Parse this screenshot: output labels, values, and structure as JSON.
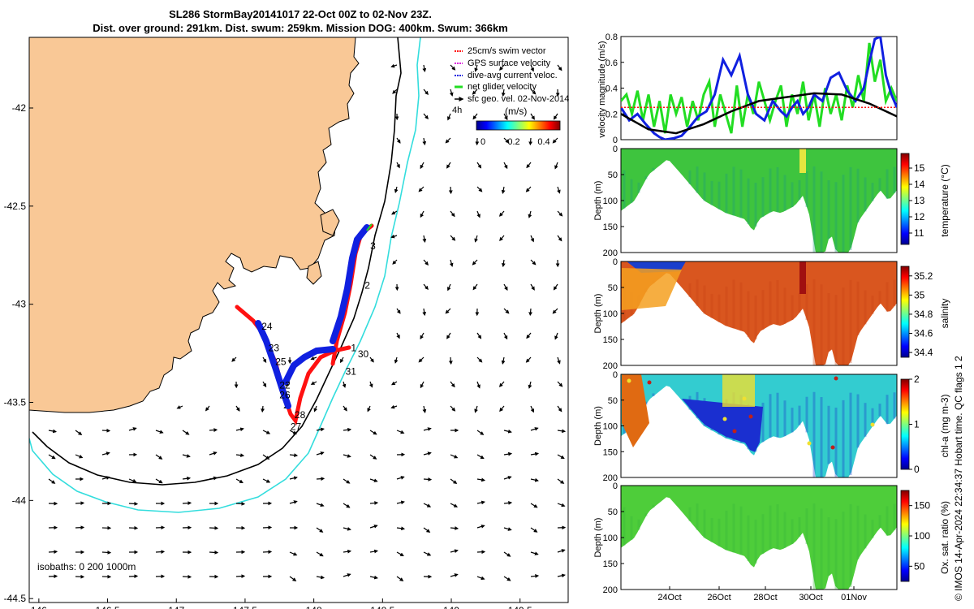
{
  "title_line1": "SL286 StormBay20141017 22-Oct 00Z to 02-Nov 23Z.",
  "title_line2": "Dist. over ground: 291km. Dist. swum: 259km. Mission DOG: 400km. Swum: 366km",
  "credit": "© IMOS 14-Apr-2024 22:34:37 Hobart time. QC flags 1  2",
  "colors": {
    "land": "#f9c896",
    "coast_iso": "#000000",
    "iso1000": "#33dddd",
    "swim": "#ff1111",
    "dac": "#1020e0",
    "net": "#22dd22",
    "sfc": "#000000"
  },
  "chart_data": [
    {
      "type": "map",
      "xlabel": "",
      "ylabel": "",
      "xlim": [
        145.93,
        149.85
      ],
      "ylim": [
        -44.52,
        -41.64
      ],
      "x_ticks": [
        "146",
        "146.5",
        "147",
        "147.5",
        "148",
        "148.5",
        "149",
        "149.5"
      ],
      "y_ticks": [
        "-42",
        "-42.5",
        "-43",
        "-43.5",
        "-44",
        "-44.5"
      ],
      "legend": [
        "25cm/s swim vector",
        "GPS surface velocity",
        "dive-avg current veloc.",
        "net glider velocity",
        "sfc geo. vel. 02-Nov-2014"
      ],
      "legend_extra": "4h",
      "colorbar_title": "(m/s)",
      "colorbar_ticks": [
        "0",
        "0.2",
        "0.4"
      ],
      "isobaths_label": "isobaths: 0   200  1000m",
      "track_labels": [
        {
          "t": "3",
          "lon": 148.41,
          "lat": -42.72
        },
        {
          "t": "2",
          "lon": 148.37,
          "lat": -42.92
        },
        {
          "t": "1",
          "lon": 148.27,
          "lat": -43.24
        },
        {
          "t": "30",
          "lon": 148.32,
          "lat": -43.27
        },
        {
          "t": "31",
          "lon": 148.23,
          "lat": -43.36
        },
        {
          "t": "24",
          "lon": 147.62,
          "lat": -43.13
        },
        {
          "t": "23",
          "lon": 147.67,
          "lat": -43.24
        },
        {
          "t": "25",
          "lon": 147.72,
          "lat": -43.31
        },
        {
          "t": "22",
          "lon": 147.75,
          "lat": -43.43
        },
        {
          "t": "26",
          "lon": 147.75,
          "lat": -43.48
        },
        {
          "t": "28",
          "lon": 147.86,
          "lat": -43.58
        },
        {
          "t": "27",
          "lon": 147.83,
          "lat": -43.64
        }
      ]
    },
    {
      "type": "line",
      "ylabel": "velocity magnitude (m/s)",
      "xlim": [
        0,
        100
      ],
      "ylim": [
        0,
        0.8
      ],
      "y_ticks": [
        "0",
        "0.2",
        "0.4",
        "0.6",
        "0.8"
      ],
      "series": [
        {
          "name": "dive-avg current veloc.",
          "color": "#1020e0",
          "x": [
            0,
            3,
            6,
            9,
            12,
            14,
            16,
            19,
            22,
            25,
            28,
            31,
            34,
            37,
            40,
            43,
            46,
            49,
            52,
            55,
            58,
            60,
            62,
            64,
            66,
            68,
            70,
            73,
            76,
            79,
            82,
            85,
            88,
            90,
            92,
            94,
            96,
            98,
            100
          ],
          "y": [
            0.25,
            0.15,
            0.2,
            0.12,
            0.05,
            0.02,
            0,
            0.01,
            0.03,
            0.1,
            0.18,
            0.22,
            0.35,
            0.62,
            0.5,
            0.65,
            0.35,
            0.2,
            0.15,
            0.3,
            0.22,
            0.18,
            0.25,
            0.3,
            0.2,
            0.25,
            0.35,
            0.3,
            0.48,
            0.52,
            0.38,
            0.3,
            0.4,
            0.6,
            0.78,
            0.8,
            0.5,
            0.35,
            0.25
          ]
        },
        {
          "name": "net glider velocity",
          "color": "#22dd22",
          "x": [
            0,
            2,
            4,
            6,
            8,
            10,
            12,
            14,
            16,
            18,
            20,
            22,
            24,
            26,
            28,
            30,
            32,
            34,
            36,
            38,
            40,
            42,
            44,
            46,
            48,
            50,
            52,
            54,
            56,
            58,
            60,
            62,
            64,
            66,
            68,
            70,
            72,
            74,
            76,
            78,
            80,
            82,
            84,
            86,
            88,
            90,
            92,
            94,
            96,
            98,
            100
          ],
          "y": [
            0.3,
            0.35,
            0.2,
            0.38,
            0.15,
            0.35,
            0.1,
            0.3,
            0.05,
            0.35,
            0.2,
            0.33,
            0.1,
            0.3,
            0.15,
            0.35,
            0.45,
            0.1,
            0.35,
            0.2,
            0.05,
            0.42,
            0.1,
            0.35,
            0.2,
            0.45,
            0.3,
            0.15,
            0.3,
            0.42,
            0.1,
            0.35,
            0.2,
            0.45,
            0.15,
            0.35,
            0.1,
            0.4,
            0.2,
            0.35,
            0.15,
            0.42,
            0.25,
            0.5,
            0.3,
            0.75,
            0.45,
            0.62,
            0.3,
            0.4,
            0.3
          ]
        },
        {
          "name": "sfc geo. vel.",
          "color": "#000000",
          "x": [
            0,
            10,
            20,
            30,
            40,
            50,
            60,
            70,
            80,
            90,
            100
          ],
          "y": [
            0.2,
            0.08,
            0.05,
            0.12,
            0.22,
            0.3,
            0.33,
            0.36,
            0.35,
            0.28,
            0.18
          ]
        },
        {
          "name": "25cm/s reference",
          "color": "#ff1111",
          "x": [
            0,
            100
          ],
          "y": [
            0.25,
            0.25
          ]
        }
      ]
    },
    {
      "type": "heatmap",
      "variable": "temperature",
      "ylabel": "Depth (m)",
      "clabel": "temperature (°C)",
      "ylim": [
        0,
        200
      ],
      "y_ticks": [
        "0",
        "50",
        "100",
        "150",
        "200"
      ],
      "c_ticks": [
        "11",
        "12",
        "13",
        "14",
        "15"
      ],
      "clim": [
        10.3,
        15.9
      ]
    },
    {
      "type": "heatmap",
      "variable": "salinity",
      "ylabel": "Depth (m)",
      "clabel": "salinity",
      "ylim": [
        0,
        200
      ],
      "y_ticks": [
        "0",
        "50",
        "100",
        "150",
        "200"
      ],
      "c_ticks": [
        "34.4",
        "34.6",
        "34.8",
        "35",
        "35.2"
      ],
      "clim": [
        34.35,
        35.3
      ]
    },
    {
      "type": "heatmap",
      "variable": "chl-a",
      "ylabel": "Depth (m)",
      "clabel": "chl-a (mg m-3)",
      "ylim": [
        0,
        200
      ],
      "y_ticks": [
        "0",
        "50",
        "100",
        "150",
        "200"
      ],
      "c_ticks": [
        "0",
        "1",
        "2"
      ],
      "clim": [
        0,
        2
      ]
    },
    {
      "type": "heatmap",
      "variable": "oxygen",
      "ylabel": "Depth (m)",
      "clabel": "Ox. sat. ratio (%)",
      "ylim": [
        0,
        200
      ],
      "y_ticks": [
        "0",
        "50",
        "100",
        "150",
        "200"
      ],
      "c_ticks": [
        "50",
        "100",
        "150"
      ],
      "clim": [
        25,
        175
      ],
      "x_ticks": [
        "24Oct",
        "26Oct",
        "28Oct",
        "30Oct",
        "01Nov"
      ]
    }
  ]
}
